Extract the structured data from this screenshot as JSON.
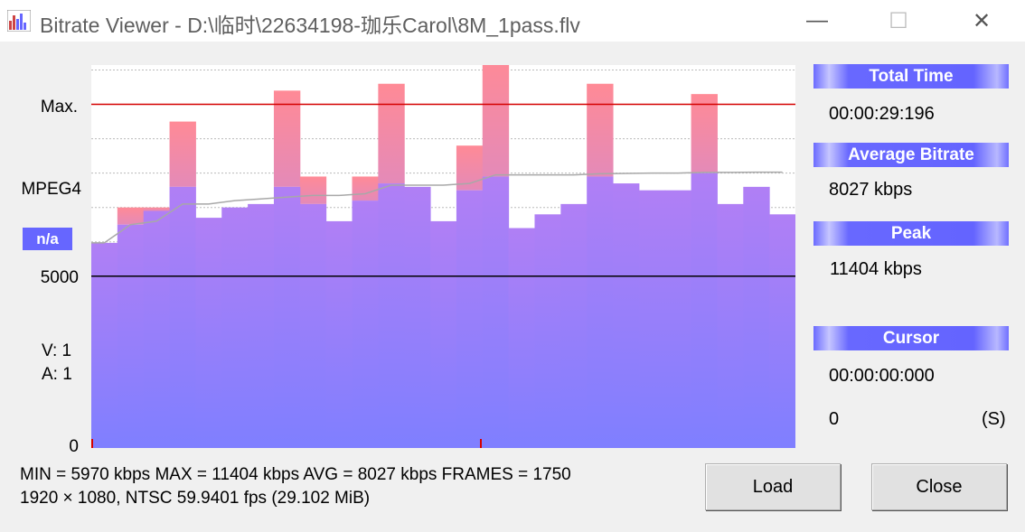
{
  "window": {
    "title": "Bitrate Viewer - D:\\临时\\22634198-珈乐Carol\\8M_1pass.flv",
    "minimize_glyph": "—",
    "maximize_glyph": "☐",
    "close_glyph": "✕",
    "icon": "bitrate-chart-icon"
  },
  "left_labels": {
    "max": "Max.",
    "codec": "MPEG4",
    "na": "n/a",
    "scale_mid": "5000",
    "v": "V:  1",
    "a": "A:  1",
    "zero": "0"
  },
  "side_panel": {
    "total_time_label": "Total Time",
    "total_time_value": "00:00:29:196",
    "avg_label": "Average Bitrate",
    "avg_value": "8027 kbps",
    "peak_label": "Peak",
    "peak_value": "11404 kbps",
    "cursor_label": "Cursor",
    "cursor_time": "00:00:00:000",
    "cursor_value": "0",
    "cursor_type": "(S)"
  },
  "stats": {
    "line1": "MIN = 5970 kbps  MAX = 11404 kbps  AVG = 8027 kbps  FRAMES = 1750",
    "line2": "1920 × 1080, NTSC 59.9401 fps (29.102 MiB)"
  },
  "buttons": {
    "load": "Load",
    "close": "Close"
  },
  "colors": {
    "bar_purple": "#a97ff7",
    "bar_blue": "#8484ff",
    "peak_pink": "#ff8a96",
    "max_line": "#d40000",
    "avg_line": "#a8a8a8",
    "accent": "#6666ff"
  },
  "chart_data": {
    "type": "bar",
    "y_unit": "kbps",
    "ylim": [
      0,
      11145
    ],
    "reference_lines": [
      {
        "label": "Max.",
        "value": 10000
      },
      {
        "label": "5000",
        "value": 5000
      }
    ],
    "bar_average_kbps": [
      5970,
      6500,
      6900,
      7600,
      6700,
      7000,
      7100,
      7600,
      7100,
      6600,
      7200,
      7700,
      7600,
      6600,
      7500,
      7900,
      6400,
      6800,
      7100,
      7900,
      7700,
      7500,
      7500,
      8000,
      7100,
      7600,
      6800
    ],
    "bar_peak_kbps": [
      5970,
      7000,
      7000,
      9500,
      6700,
      7000,
      7100,
      10400,
      7900,
      6600,
      7900,
      10600,
      7600,
      6600,
      8800,
      11404,
      6400,
      6800,
      7100,
      10600,
      7700,
      7500,
      7500,
      10300,
      7100,
      7600,
      6800
    ],
    "cumulative_average_kbps": [
      5970,
      6500,
      6600,
      7100,
      7100,
      7200,
      7250,
      7300,
      7350,
      7350,
      7400,
      7650,
      7650,
      7650,
      7700,
      7950,
      7950,
      7950,
      7950,
      7980,
      7990,
      8000,
      8000,
      8020,
      8020,
      8027,
      8027
    ],
    "cursor_position": 0
  }
}
